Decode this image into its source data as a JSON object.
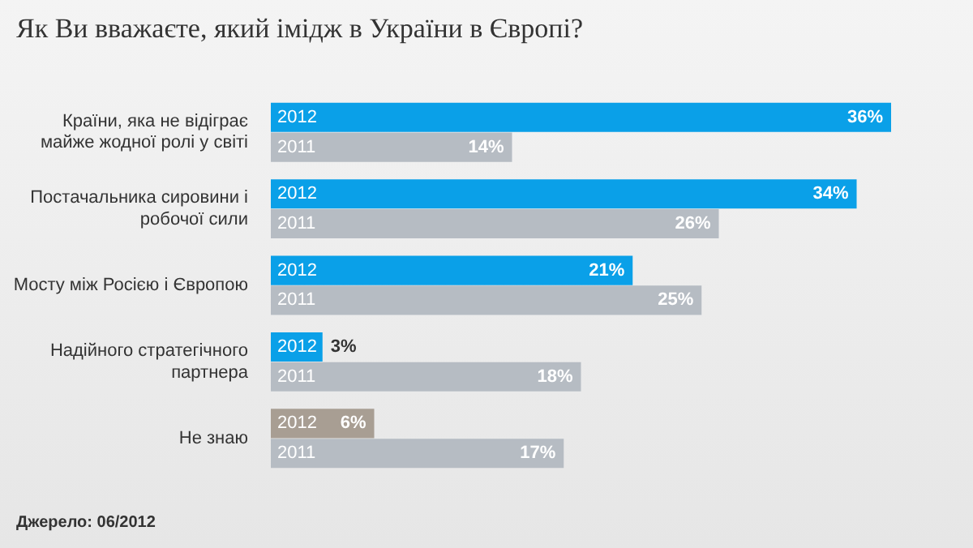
{
  "chart_data": {
    "type": "bar",
    "orientation": "horizontal",
    "title": "Як Ви вважаєте, який імідж в України в Європі?",
    "categories": [
      "Країни, яка не відіграє майже жодної ролі у світі",
      "Постачальника сировини і робочої сили",
      "Мосту між Росією і Європою",
      "Надійного стратегічного партнера",
      "Не знаю"
    ],
    "series": [
      {
        "name": "2012",
        "colors": [
          "#0aa0e8",
          "#0aa0e8",
          "#0aa0e8",
          "#0aa0e8",
          "#a89e93"
        ],
        "values": [
          36,
          34,
          21,
          3,
          6
        ],
        "value_labels": [
          "36%",
          "34%",
          "21%",
          "3%",
          "6%"
        ]
      },
      {
        "name": "2011",
        "color": "#b6bcc3",
        "values": [
          14,
          26,
          25,
          18,
          17
        ],
        "value_labels": [
          "14%",
          "26%",
          "25%",
          "18%",
          "17%"
        ]
      }
    ],
    "legend": false,
    "annotations": [
      "Джерело: 06/2012"
    ]
  }
}
